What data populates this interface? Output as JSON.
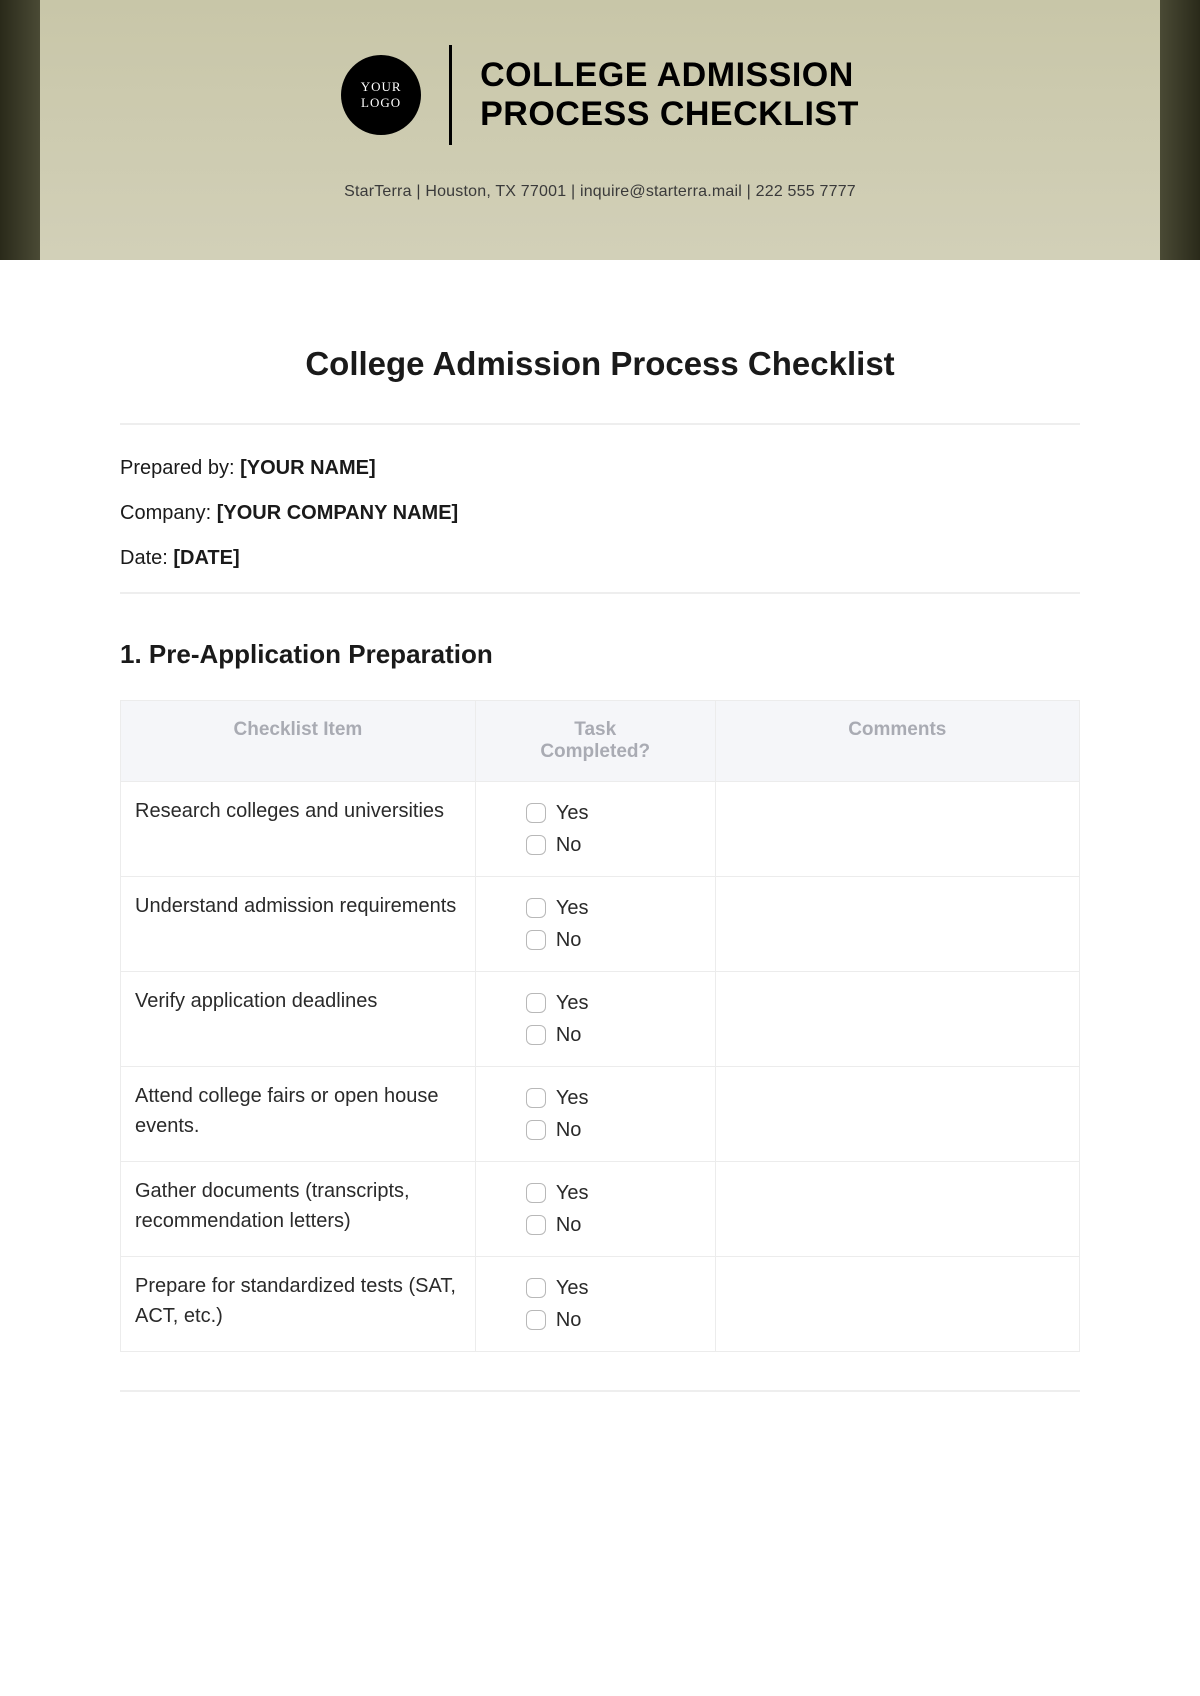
{
  "banner": {
    "logo_line1": "YOUR",
    "logo_line2": "LOGO",
    "title_line1": "COLLEGE ADMISSION",
    "title_line2": "PROCESS CHECKLIST",
    "meta": "StarTerra | Houston, TX 77001 | inquire@starterra.mail | 222 555 7777"
  },
  "page": {
    "title": "College Admission Process Checklist",
    "prepared_by_label": "Prepared by: ",
    "prepared_by_value": "[YOUR NAME]",
    "company_label": "Company: ",
    "company_value": "[YOUR COMPANY NAME]",
    "date_label": "Date: ",
    "date_value": "[DATE]"
  },
  "section": {
    "title": "1. Pre-Application Preparation"
  },
  "table": {
    "headers": {
      "item": "Checklist Item",
      "completed_line1": "Task",
      "completed_line2": "Completed?",
      "comments": "Comments"
    },
    "yes": "Yes",
    "no": "No",
    "rows": [
      {
        "item": "Research colleges and universities",
        "comments": ""
      },
      {
        "item": "Understand admission requirements",
        "comments": ""
      },
      {
        "item": "Verify application deadlines",
        "comments": ""
      },
      {
        "item": "Attend college fairs or open house events.",
        "comments": ""
      },
      {
        "item": "Gather documents (transcripts, recommendation letters)",
        "comments": ""
      },
      {
        "item": "Prepare for standardized tests (SAT, ACT, etc.)",
        "comments": ""
      }
    ]
  },
  "colors": {
    "banner_bg": "#cdcbb0",
    "edge_dark": "#2a2a1a",
    "header_bg": "#f5f6f9",
    "header_text": "#a9abb3",
    "border": "#ececec",
    "text": "#1a1a1a"
  }
}
